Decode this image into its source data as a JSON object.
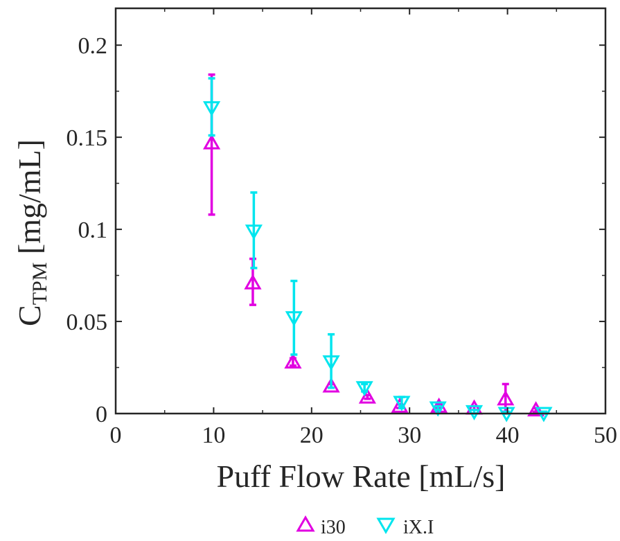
{
  "chart_data": {
    "type": "scatter",
    "title": "",
    "xlabel": "Puff Flow Rate [mL/s]",
    "ylabel_main": "C",
    "ylabel_sub": "TPM",
    "ylabel_unit": "[mg/mL]",
    "xlim": [
      0,
      50
    ],
    "ylim": [
      0,
      0.22
    ],
    "x_ticks": [
      0,
      10,
      20,
      30,
      40,
      50
    ],
    "x_tick_labels": [
      "0",
      "10",
      "20",
      "30",
      "40",
      "50"
    ],
    "y_ticks": [
      0,
      0.05,
      0.1,
      0.15,
      0.2
    ],
    "y_tick_labels": [
      "0",
      "0.05",
      "0.1",
      "0.15",
      "0.2"
    ],
    "grid": false,
    "legend_position": "bottom-center",
    "series": [
      {
        "name": "i30",
        "marker": "triangle-up",
        "color": "#e100e1",
        "points": [
          {
            "x": 9.8,
            "y": 0.147,
            "err_low": 0.108,
            "err_high": 0.184
          },
          {
            "x": 14.0,
            "y": 0.071,
            "err_low": 0.059,
            "err_high": 0.084
          },
          {
            "x": 18.1,
            "y": 0.028,
            "err_low": 0.026,
            "err_high": 0.03
          },
          {
            "x": 22.0,
            "y": 0.015,
            "err_low": 0.014,
            "err_high": 0.016
          },
          {
            "x": 25.7,
            "y": 0.009,
            "err_low": 0.008,
            "err_high": 0.01
          },
          {
            "x": 29.0,
            "y": 0.004,
            "err_low": 0.003,
            "err_high": 0.005
          },
          {
            "x": 33.0,
            "y": 0.004,
            "err_low": 0.003,
            "err_high": 0.005
          },
          {
            "x": 36.6,
            "y": 0.003,
            "err_low": 0.002,
            "err_high": 0.004
          },
          {
            "x": 39.8,
            "y": 0.008,
            "err_low": 0.001,
            "err_high": 0.016
          },
          {
            "x": 42.9,
            "y": 0.002,
            "err_low": 0.001,
            "err_high": 0.003
          }
        ]
      },
      {
        "name": "iX.I",
        "marker": "triangle-down",
        "color": "#00e5ee",
        "points": [
          {
            "x": 9.8,
            "y": 0.166,
            "err_low": 0.151,
            "err_high": 0.182
          },
          {
            "x": 14.1,
            "y": 0.099,
            "err_low": 0.079,
            "err_high": 0.12
          },
          {
            "x": 18.2,
            "y": 0.052,
            "err_low": 0.032,
            "err_high": 0.072
          },
          {
            "x": 22.0,
            "y": 0.028,
            "err_low": 0.014,
            "err_high": 0.043
          },
          {
            "x": 25.4,
            "y": 0.014,
            "err_low": 0.012,
            "err_high": 0.016
          },
          {
            "x": 29.2,
            "y": 0.006,
            "err_low": 0.003,
            "err_high": 0.009
          },
          {
            "x": 32.9,
            "y": 0.003,
            "err_low": 0.002,
            "err_high": 0.004
          },
          {
            "x": 36.6,
            "y": 0.001,
            "err_low": 0.0,
            "err_high": 0.002
          },
          {
            "x": 39.9,
            "y": 0.0,
            "err_low": 0.0,
            "err_high": 0.001
          },
          {
            "x": 43.7,
            "y": 0.0,
            "err_low": 0.0,
            "err_high": 0.001
          }
        ]
      }
    ]
  }
}
